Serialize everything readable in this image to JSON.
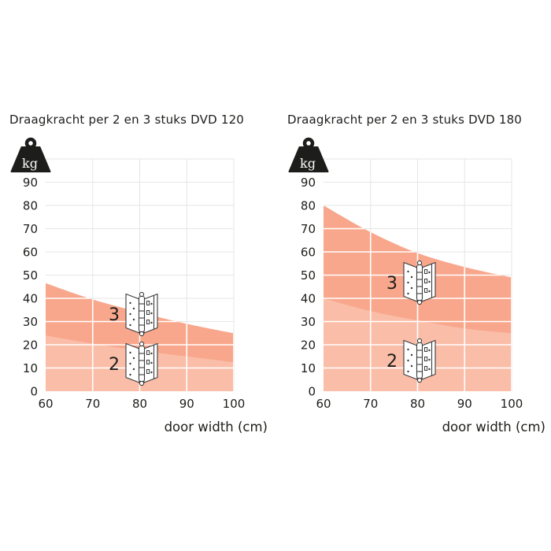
{
  "chart_data": [
    {
      "type": "area",
      "title": "Draagkracht per 2 en 3 stuks DVD 120",
      "y_unit": "kg",
      "xlabel": "door width (cm)",
      "x": [
        60,
        70,
        80,
        90,
        100
      ],
      "series": [
        {
          "name": "3 hinges (3 stuks)",
          "annotation": "3",
          "values": [
            46.5,
            39.5,
            34,
            29,
            25
          ],
          "color": "#f8a78c"
        },
        {
          "name": "2 hinges (2 stuks)",
          "annotation": "2",
          "values": [
            24,
            20.5,
            17.5,
            15,
            12.5
          ],
          "color": "#fabda8"
        }
      ],
      "xlim": [
        60,
        100
      ],
      "ylim": [
        0,
        100
      ],
      "xticks": [
        60,
        70,
        80,
        90,
        100
      ],
      "yticks": [
        0,
        10,
        20,
        30,
        40,
        50,
        60,
        70,
        80,
        90
      ],
      "grid": true,
      "legend": "none"
    },
    {
      "type": "area",
      "title": "Draagkracht per 2 en 3 stuks DVD 180",
      "y_unit": "kg",
      "xlabel": "door width (cm)",
      "x": [
        60,
        70,
        80,
        90,
        100
      ],
      "series": [
        {
          "name": "3 hinges (3 stuks)",
          "annotation": "3",
          "values": [
            80,
            68.5,
            59.5,
            53.5,
            49
          ],
          "color": "#f8a78c"
        },
        {
          "name": "2 hinges (2 stuks)",
          "annotation": "2",
          "values": [
            40,
            34.5,
            30.5,
            27,
            25
          ],
          "color": "#fabda8"
        }
      ],
      "xlim": [
        60,
        100
      ],
      "ylim": [
        0,
        100
      ],
      "xticks": [
        60,
        70,
        80,
        90,
        100
      ],
      "yticks": [
        0,
        10,
        20,
        30,
        40,
        50,
        60,
        70,
        80,
        90
      ],
      "grid": true,
      "legend": "none"
    }
  ],
  "colors": {
    "fill_3_hinges": "#f8a78c",
    "fill_2_hinges": "#fabda8",
    "grid": "#e6e6e6",
    "grid_on_fill": "#ffffff",
    "text": "#1d1d1b",
    "hinge_line": "#3a3a3a"
  }
}
